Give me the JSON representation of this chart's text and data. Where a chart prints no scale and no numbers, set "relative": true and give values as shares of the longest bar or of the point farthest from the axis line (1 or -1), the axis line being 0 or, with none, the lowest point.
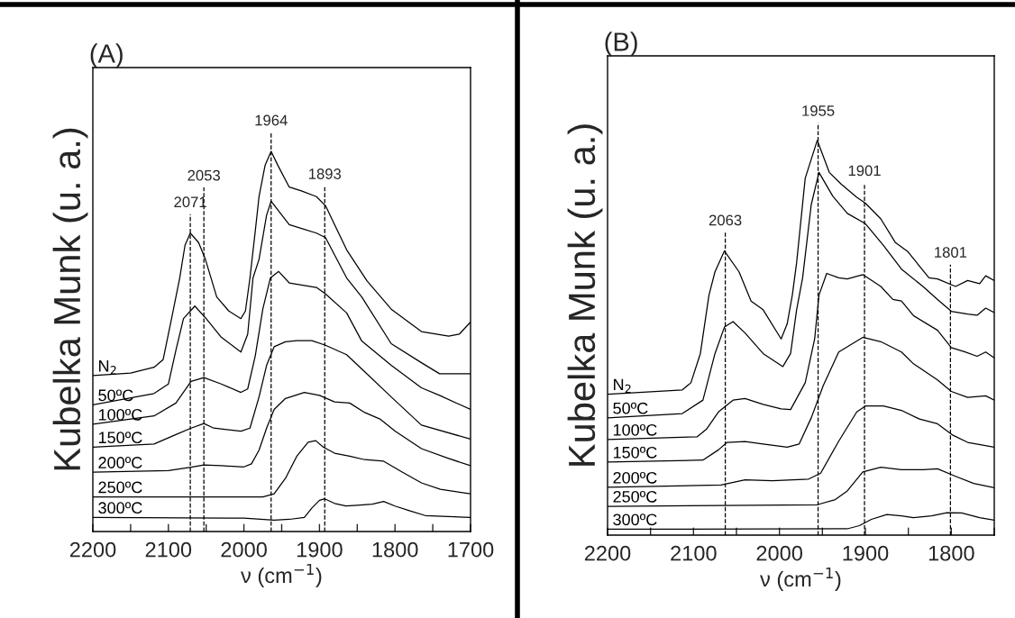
{
  "chart_data": [
    {
      "type": "line",
      "title": "(A)",
      "xlabel": "ν (cm$^{−1}$)",
      "ylabel": "Kubelka Munk (u. a.)",
      "relative": true,
      "legend": false,
      "grid": false,
      "marker": "none",
      "line_style": "solid",
      "xlim": [
        2200,
        1700
      ],
      "xticks": [
        2200,
        {
          "value": 2150,
          "label": null
        },
        2100,
        {
          "value": 2050,
          "label": null
        },
        2000,
        {
          "value": 1950,
          "label": null
        },
        1900,
        {
          "value": 1850,
          "label": null
        },
        1800,
        {
          "value": 1750,
          "label": null
        },
        1700
      ],
      "ref_lines": [
        {
          "axis": "x",
          "value": 2071,
          "label": "2071",
          "line_style": "dashed",
          "color": "#000000"
        },
        {
          "axis": "x",
          "value": 2053,
          "label": "2053",
          "line_style": "dashed",
          "color": "#000000"
        },
        {
          "axis": "x",
          "value": 1964,
          "label": "1964",
          "line_style": "dashed",
          "color": "#000000"
        },
        {
          "axis": "x",
          "value": 1893,
          "label": "1893",
          "line_style": "dashed",
          "color": "#000000"
        }
      ],
      "series": [
        {
          "name": "N$_{2}$",
          "color": "#000000",
          "x": [
            2200,
            2150,
            2119,
            2107,
            2095,
            2085,
            2078,
            2071,
            2060,
            2051,
            2036,
            2020,
            2004,
            1998,
            1992,
            1985,
            1980,
            1972,
            1964,
            1955,
            1940,
            1924,
            1904,
            1892,
            1864,
            1837,
            1805,
            1765,
            1729,
            1715,
            1700
          ],
          "values": [
            0.41,
            0.417,
            0.432,
            0.452,
            0.568,
            0.667,
            0.753,
            0.785,
            0.76,
            0.716,
            0.617,
            0.58,
            0.56,
            0.58,
            0.667,
            0.79,
            0.881,
            0.963,
            1.0,
            0.963,
            0.906,
            0.896,
            0.881,
            0.857,
            0.741,
            0.659,
            0.585,
            0.526,
            0.514,
            0.519,
            0.551
          ]
        },
        {
          "name": "50ºC",
          "color": "#000000",
          "x": [
            2200,
            2119,
            2100,
            2090,
            2080,
            2065,
            2050,
            2030,
            2004,
            1995,
            1988,
            1980,
            1970,
            1964,
            1940,
            1904,
            1892,
            1864,
            1844,
            1805,
            1765,
            1741,
            1700
          ],
          "values": [
            0.333,
            0.363,
            0.388,
            0.477,
            0.56,
            0.593,
            0.56,
            0.511,
            0.472,
            0.519,
            0.667,
            0.716,
            0.832,
            0.869,
            0.807,
            0.785,
            0.773,
            0.667,
            0.617,
            0.494,
            0.444,
            0.415,
            0.415
          ]
        },
        {
          "name": "100ºC",
          "color": "#000000",
          "x": [
            2200,
            2119,
            2090,
            2070,
            2053,
            2030,
            2004,
            1995,
            1985,
            1975,
            1965,
            1954,
            1940,
            1904,
            1892,
            1864,
            1844,
            1805,
            1765,
            1741,
            1700
          ],
          "values": [
            0.282,
            0.304,
            0.338,
            0.395,
            0.405,
            0.388,
            0.366,
            0.375,
            0.462,
            0.585,
            0.667,
            0.684,
            0.654,
            0.642,
            0.625,
            0.575,
            0.501,
            0.437,
            0.378,
            0.358,
            0.321
          ]
        },
        {
          "name": "150ºC",
          "color": "#000000",
          "x": [
            2200,
            2119,
            2090,
            2070,
            2053,
            2040,
            2004,
            1992,
            1980,
            1970,
            1960,
            1945,
            1930,
            1910,
            1892,
            1864,
            1840,
            1805,
            1765,
            1700
          ],
          "values": [
            0.222,
            0.23,
            0.255,
            0.272,
            0.284,
            0.272,
            0.264,
            0.272,
            0.354,
            0.437,
            0.486,
            0.499,
            0.502,
            0.502,
            0.49,
            0.465,
            0.42,
            0.354,
            0.28,
            0.243
          ]
        },
        {
          "name": "200ºC",
          "color": "#000000",
          "x": [
            2200,
            2100,
            2070,
            2053,
            2030,
            2000,
            1990,
            1980,
            1970,
            1960,
            1945,
            1920,
            1900,
            1880,
            1860,
            1840,
            1820,
            1800,
            1765,
            1730,
            1700
          ],
          "values": [
            0.156,
            0.16,
            0.169,
            0.175,
            0.173,
            0.17,
            0.178,
            0.214,
            0.272,
            0.321,
            0.35,
            0.366,
            0.358,
            0.341,
            0.338,
            0.313,
            0.296,
            0.264,
            0.218,
            0.193,
            0.173
          ]
        },
        {
          "name": "250ºC",
          "color": "#000000",
          "x": [
            2200,
            2000,
            1975,
            1960,
            1945,
            1930,
            1915,
            1905,
            1895,
            1880,
            1860,
            1840,
            1815,
            1790,
            1765,
            1740,
            1700
          ],
          "values": [
            0.091,
            0.091,
            0.091,
            0.099,
            0.14,
            0.198,
            0.235,
            0.239,
            0.222,
            0.206,
            0.198,
            0.189,
            0.185,
            0.156,
            0.128,
            0.111,
            0.099
          ]
        },
        {
          "name": "300ºC",
          "color": "#000000",
          "x": [
            2200,
            2000,
            1960,
            1940,
            1920,
            1910,
            1900,
            1893,
            1880,
            1865,
            1850,
            1830,
            1815,
            1800,
            1780,
            1760,
            1700
          ],
          "values": [
            0.037,
            0.035,
            0.03,
            0.032,
            0.037,
            0.062,
            0.082,
            0.086,
            0.074,
            0.067,
            0.069,
            0.072,
            0.079,
            0.067,
            0.054,
            0.042,
            0.037
          ]
        }
      ]
    },
    {
      "type": "line",
      "title": "(B)",
      "xlabel": "ν (cm$^{−1}$)",
      "ylabel": "Kubelka Munk (u. a.)",
      "relative": true,
      "legend": false,
      "grid": false,
      "marker": "none",
      "line_style": "solid",
      "xlim": [
        2200,
        1750
      ],
      "xticks": [
        2200,
        {
          "value": 2150,
          "label": null
        },
        2100,
        {
          "value": 2050,
          "label": null
        },
        2000,
        {
          "value": 1950,
          "label": null
        },
        1900,
        {
          "value": 1850,
          "label": null
        },
        1800,
        {
          "value": 1750,
          "label": null
        }
      ],
      "ref_lines": [
        {
          "axis": "x",
          "value": 2063,
          "label": "2063",
          "line_style": "dashed",
          "color": "#000000"
        },
        {
          "axis": "x",
          "value": 1955,
          "label": "1955",
          "line_style": "dashed",
          "color": "#000000"
        },
        {
          "axis": "x",
          "value": 1901,
          "label": "1901",
          "line_style": "dashed",
          "color": "#000000"
        },
        {
          "axis": "x",
          "value": 1801,
          "label": "1801",
          "line_style": "dashed",
          "color": "#000000"
        }
      ],
      "series": [
        {
          "name": "N$_{2}$",
          "color": "#000000",
          "x": [
            2200,
            2113,
            2103,
            2092,
            2082,
            2075,
            2064,
            2047,
            2033,
            2019,
            1998,
            1991,
            1985,
            1980,
            1970,
            1956,
            1942,
            1928,
            1910,
            1900,
            1882,
            1865,
            1851,
            1826,
            1816,
            1795,
            1781,
            1767,
            1760,
            1750
          ],
          "values": [
            0.357,
            0.368,
            0.386,
            0.46,
            0.608,
            0.667,
            0.72,
            0.667,
            0.593,
            0.571,
            0.497,
            0.535,
            0.608,
            0.69,
            0.904,
            1.0,
            0.919,
            0.889,
            0.856,
            0.841,
            0.801,
            0.741,
            0.719,
            0.652,
            0.649,
            0.63,
            0.645,
            0.637,
            0.657,
            0.645
          ]
        },
        {
          "name": "50ºC",
          "color": "#000000",
          "x": [
            2200,
            2150,
            2113,
            2089,
            2075,
            2064,
            2054,
            2040,
            2019,
            1996,
            1987,
            1980,
            1973,
            1963,
            1954,
            1938,
            1921,
            1900,
            1879,
            1858,
            1833,
            1816,
            1800,
            1781,
            1770,
            1760,
            1750
          ],
          "values": [
            0.297,
            0.303,
            0.308,
            0.342,
            0.46,
            0.527,
            0.541,
            0.512,
            0.46,
            0.427,
            0.46,
            0.571,
            0.652,
            0.837,
            0.919,
            0.859,
            0.815,
            0.789,
            0.734,
            0.674,
            0.63,
            0.597,
            0.567,
            0.56,
            0.557,
            0.575,
            0.564
          ]
        },
        {
          "name": "100ºC",
          "color": "#000000",
          "x": [
            2200,
            2096,
            2085,
            2071,
            2054,
            2040,
            2019,
            1998,
            1987,
            1970,
            1959,
            1954,
            1945,
            1931,
            1921,
            1903,
            1882,
            1868,
            1858,
            1844,
            1816,
            1800,
            1784,
            1770,
            1760,
            1750
          ],
          "values": [
            0.242,
            0.249,
            0.268,
            0.312,
            0.342,
            0.346,
            0.331,
            0.32,
            0.318,
            0.386,
            0.497,
            0.608,
            0.663,
            0.652,
            0.649,
            0.66,
            0.63,
            0.597,
            0.593,
            0.556,
            0.519,
            0.475,
            0.464,
            0.453,
            0.464,
            0.449
          ]
        },
        {
          "name": "150ºC",
          "color": "#000000",
          "x": [
            2200,
            2089,
            2071,
            2061,
            2040,
            2019,
            1991,
            1977,
            1963,
            1949,
            1931,
            1903,
            1882,
            1858,
            1844,
            1816,
            1800,
            1781,
            1760,
            1750
          ],
          "values": [
            0.185,
            0.19,
            0.216,
            0.235,
            0.237,
            0.231,
            0.223,
            0.231,
            0.297,
            0.379,
            0.464,
            0.501,
            0.49,
            0.464,
            0.434,
            0.393,
            0.364,
            0.349,
            0.353,
            0.342
          ]
        },
        {
          "name": "200ºC",
          "color": "#000000",
          "x": [
            2200,
            2068,
            2040,
            2008,
            1966,
            1952,
            1931,
            1910,
            1900,
            1879,
            1858,
            1837,
            1816,
            1798,
            1781,
            1750
          ],
          "values": [
            0.121,
            0.127,
            0.14,
            0.138,
            0.142,
            0.157,
            0.238,
            0.312,
            0.327,
            0.327,
            0.316,
            0.294,
            0.282,
            0.253,
            0.235,
            0.223
          ]
        },
        {
          "name": "250ºC",
          "color": "#000000",
          "x": [
            2200,
            1956,
            1935,
            1921,
            1903,
            1882,
            1858,
            1833,
            1816,
            1795,
            1774,
            1750
          ],
          "values": [
            0.073,
            0.077,
            0.09,
            0.112,
            0.16,
            0.172,
            0.166,
            0.166,
            0.168,
            0.149,
            0.131,
            0.12
          ]
        },
        {
          "name": "300ºC",
          "color": "#000000",
          "x": [
            2200,
            1921,
            1907,
            1893,
            1875,
            1858,
            1844,
            1823,
            1805,
            1788,
            1767,
            1750
          ],
          "values": [
            0.015,
            0.016,
            0.024,
            0.04,
            0.052,
            0.049,
            0.044,
            0.049,
            0.057,
            0.056,
            0.044,
            0.038
          ]
        }
      ]
    }
  ]
}
